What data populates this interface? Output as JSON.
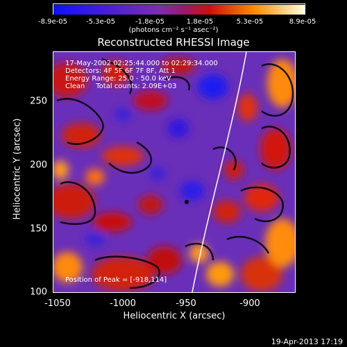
{
  "colorbar": {
    "tick_labels": [
      "-8.9e-05",
      "-5.3e-05",
      "-1.8e-05",
      "1.8e-05",
      "5.3e-05",
      "8.9e-05"
    ],
    "units": "(photons cm⁻² s⁻¹ asec⁻²)",
    "colors": [
      "#1010ff",
      "#5a1ec8",
      "#8c3aa0",
      "#cc1010",
      "#ff8c00",
      "#ffff80"
    ]
  },
  "title": "Reconstructed RHESSI Image",
  "annotations": {
    "time_range": "17-May-2002 02:25:44.000 to 02:29:34.000",
    "detectors": "Detectors: 4F 5F 6F 7F 8F, Att 1",
    "energy": "Energy Range: 25.0 - 50.0 keV",
    "clean": "Clean     Total counts: 2.09E+03",
    "peak": "Position of Peak = [-918,114]"
  },
  "axes": {
    "xlabel": "Heliocentric X (arcsec)",
    "ylabel": "Heliocentric Y (arcsec)",
    "xticks": [
      "-1050",
      "-1000",
      "-950",
      "-900"
    ],
    "yticks": [
      "250",
      "200",
      "150",
      "100"
    ]
  },
  "footer": {
    "date": "19-Apr-2013 17:19"
  }
}
